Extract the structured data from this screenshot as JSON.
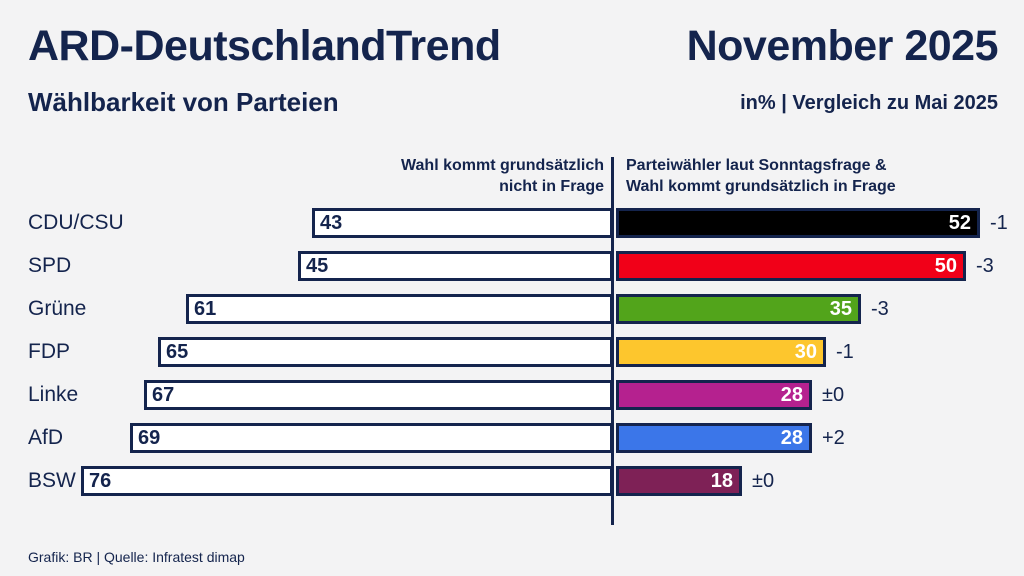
{
  "header": {
    "title": "ARD-DeutschlandTrend",
    "date": "November 2025",
    "subtitle": "Wählbarkeit von Parteien",
    "unit_note": "in% | Vergleich zu Mai 2025"
  },
  "columns": {
    "left_line1": "Wahl kommt grundsätzlich",
    "left_line2": "nicht in Frage",
    "right_line1": "Parteiwähler laut Sonntagsfrage &",
    "right_line2": "Wahl kommt grundsätzlich in Frage"
  },
  "footer": {
    "credit": "Grafik: BR | Quelle: Infratest dimap"
  },
  "colors": {
    "navy": "#14244d",
    "background": "#f3f3f4",
    "bar_border": "#14244d",
    "left_bar_fill": "#ffffff"
  },
  "chart_data": {
    "type": "bar",
    "variant": "horizontal-diverging",
    "title": "ARD-DeutschlandTrend — Wählbarkeit von Parteien",
    "subtitle": "November 2025",
    "unit": "%",
    "comparison_note": "Vergleich zu Mai 2025",
    "axis_left_label": "Wahl kommt grundsätzlich nicht in Frage",
    "axis_right_label": "Parteiwähler laut Sonntagsfrage & Wahl kommt grundsätzlich in Frage",
    "categories": [
      "CDU/CSU",
      "SPD",
      "Grüne",
      "FDP",
      "Linke",
      "AfD",
      "BSW"
    ],
    "series": [
      {
        "name": "Wahl kommt grundsätzlich nicht in Frage",
        "values": [
          43,
          45,
          61,
          65,
          67,
          69,
          76
        ]
      },
      {
        "name": "Parteiwähler laut Sonntagsfrage & Wahl kommt grundsätzlich in Frage",
        "values": [
          52,
          50,
          35,
          30,
          28,
          28,
          18
        ]
      }
    ],
    "changes": [
      "-1",
      "-3",
      "-3",
      "-1",
      "±0",
      "+2",
      "±0"
    ],
    "xlim_left": [
      0,
      76
    ],
    "xlim_right": [
      0,
      52
    ],
    "rows": [
      {
        "party": "CDU/CSU",
        "nicht_in_frage": 43,
        "in_frage": 52,
        "change": "-1",
        "color": "#000000"
      },
      {
        "party": "SPD",
        "nicht_in_frage": 45,
        "in_frage": 50,
        "change": "-3",
        "color": "#f10018"
      },
      {
        "party": "Grüne",
        "nicht_in_frage": 61,
        "in_frage": 35,
        "change": "-3",
        "color": "#52a41b"
      },
      {
        "party": "FDP",
        "nicht_in_frage": 65,
        "in_frage": 30,
        "change": "-1",
        "color": "#fdc62d"
      },
      {
        "party": "Linke",
        "nicht_in_frage": 67,
        "in_frage": 28,
        "change": "±0",
        "color": "#b5218f"
      },
      {
        "party": "AfD",
        "nicht_in_frage": 69,
        "in_frage": 28,
        "change": "+2",
        "color": "#3b76e9"
      },
      {
        "party": "BSW",
        "nicht_in_frage": 76,
        "in_frage": 18,
        "change": "±0",
        "color": "#7e2156"
      }
    ]
  }
}
